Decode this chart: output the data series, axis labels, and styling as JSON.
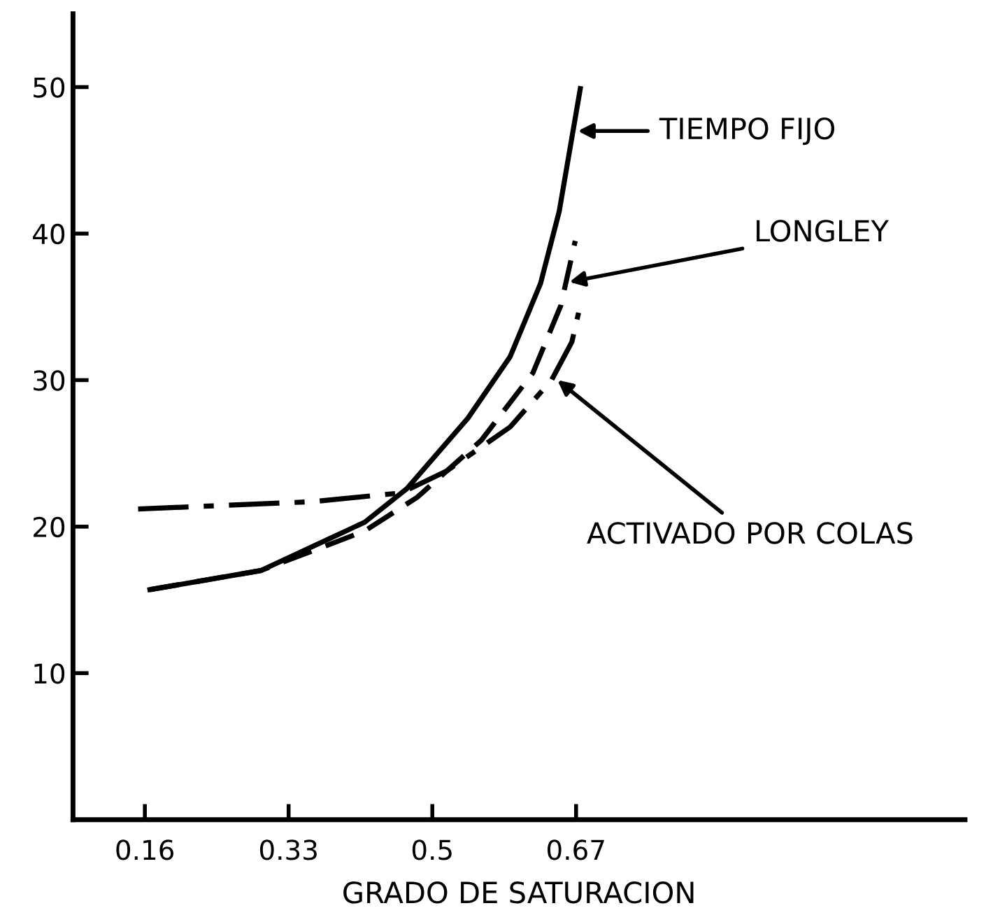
{
  "chart_data": {
    "type": "line",
    "xlabel": "GRADO DE SATURACION",
    "xlim": [
      0.075,
      1.13
    ],
    "xticks": [
      {
        "value": 0.16,
        "label": "0.16"
      },
      0.33,
      0.5,
      0.67
    ],
    "ylim": [
      0,
      55
    ],
    "yticks": [
      10,
      20,
      30,
      40,
      50
    ],
    "grid": false,
    "legend": false,
    "marker": "none",
    "series": [
      {
        "color": "#000000",
        "line_style": "solid",
        "x": [
          0.166,
          0.297,
          0.42,
          0.47,
          0.542,
          0.592,
          0.628,
          0.65,
          0.675
        ],
        "values": [
          15.7,
          17.0,
          20.3,
          22.6,
          27.4,
          31.6,
          36.6,
          41.5,
          49.9
        ]
      },
      {
        "color": "#000000",
        "line_style": "dashed",
        "x": [
          0.166,
          0.297,
          0.42,
          0.482,
          0.558,
          0.619,
          0.652,
          0.669
        ],
        "values": [
          15.7,
          17.0,
          19.7,
          22.0,
          25.9,
          30.5,
          35.1,
          39.5
        ]
      },
      {
        "color": "#000000",
        "line_style": "dashdot",
        "x": [
          0.152,
          0.357,
          0.463,
          0.517,
          0.592,
          0.641,
          0.665,
          0.673
        ],
        "values": [
          21.2,
          21.7,
          22.3,
          23.8,
          26.8,
          30.0,
          32.6,
          34.6
        ]
      }
    ],
    "annotations": [
      {
        "text": "TIEMPO FIJO",
        "x": 0.672,
        "y": 47
      },
      {
        "text": "LONGLEY",
        "x": 0.662,
        "y": 36.7
      },
      {
        "text": "ACTIVADO POR COLAS",
        "x": 0.648,
        "y": 30.0
      }
    ]
  }
}
